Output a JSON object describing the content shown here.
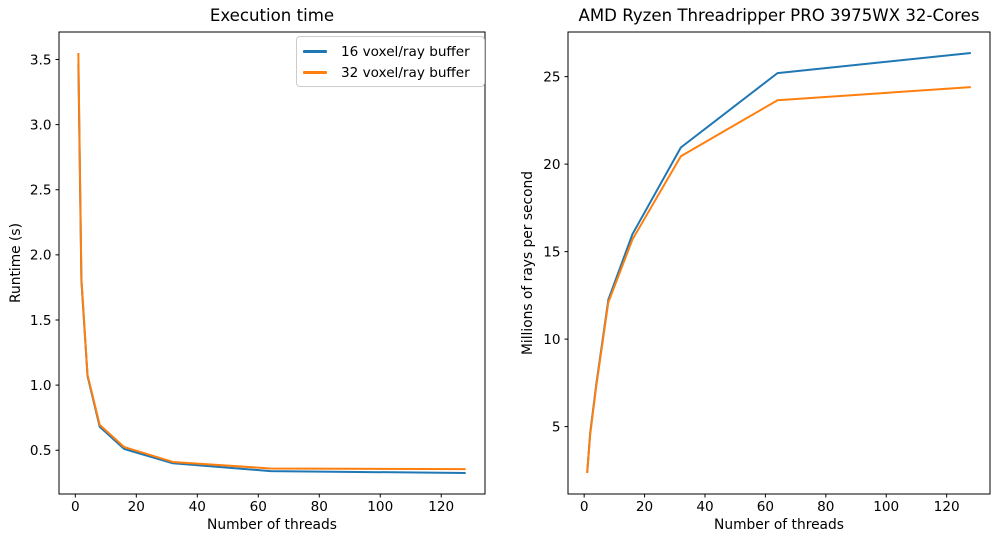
{
  "figure": {
    "background": "#ffffff",
    "text_color": "#000000",
    "spine_color": "#000000",
    "legend_border_color": "#cccccc"
  },
  "chart_data": [
    {
      "type": "line",
      "title": "Execution time",
      "xlabel": "Number of threads",
      "ylabel": "Runtime (s)",
      "grid": false,
      "x": [
        1,
        2,
        4,
        8,
        16,
        32,
        64,
        128
      ],
      "series": [
        {
          "name": "16 voxel/ray buffer",
          "color": "#1f77b4",
          "values": [
            3.47,
            1.8,
            1.07,
            0.68,
            0.51,
            0.4,
            0.34,
            0.325
          ]
        },
        {
          "name": "32 voxel/ray buffer",
          "color": "#ff7f0e",
          "values": [
            3.55,
            1.82,
            1.08,
            0.695,
            0.525,
            0.41,
            0.36,
            0.355
          ]
        }
      ],
      "xlim": [
        -5.35,
        134.35
      ],
      "ylim": [
        0.164,
        3.711
      ],
      "xticks": [
        0,
        20,
        40,
        60,
        80,
        100,
        120
      ],
      "xticklabels": [
        "0",
        "20",
        "40",
        "60",
        "80",
        "100",
        "120"
      ],
      "yticks": [
        0.5,
        1.0,
        1.5,
        2.0,
        2.5,
        3.0,
        3.5
      ],
      "yticklabels": [
        "0.5",
        "1.0",
        "1.5",
        "2.0",
        "2.5",
        "3.0",
        "3.5"
      ],
      "legend": {
        "visible": true,
        "location": "upper right"
      }
    },
    {
      "type": "line",
      "title": "AMD Ryzen Threadripper PRO 3975WX 32-Cores",
      "xlabel": "Number of threads",
      "ylabel": "Millions of rays per second",
      "grid": false,
      "x": [
        1,
        2,
        4,
        8,
        16,
        32,
        64,
        128
      ],
      "series": [
        {
          "name": "16 voxel/ray buffer",
          "color": "#1f77b4",
          "values": [
            2.37,
            4.65,
            7.4,
            12.25,
            16.0,
            20.95,
            25.2,
            26.35
          ]
        },
        {
          "name": "32 voxel/ray buffer",
          "color": "#ff7f0e",
          "values": [
            2.35,
            4.55,
            7.3,
            12.1,
            15.7,
            20.45,
            23.65,
            24.4
          ]
        }
      ],
      "xlim": [
        -5.35,
        134.35
      ],
      "ylim": [
        1.15,
        27.55
      ],
      "xticks": [
        0,
        20,
        40,
        60,
        80,
        100,
        120
      ],
      "xticklabels": [
        "0",
        "20",
        "40",
        "60",
        "80",
        "100",
        "120"
      ],
      "yticks": [
        5,
        10,
        15,
        20,
        25
      ],
      "yticklabels": [
        "5",
        "10",
        "15",
        "20",
        "25"
      ],
      "legend": {
        "visible": false,
        "location": ""
      }
    }
  ]
}
